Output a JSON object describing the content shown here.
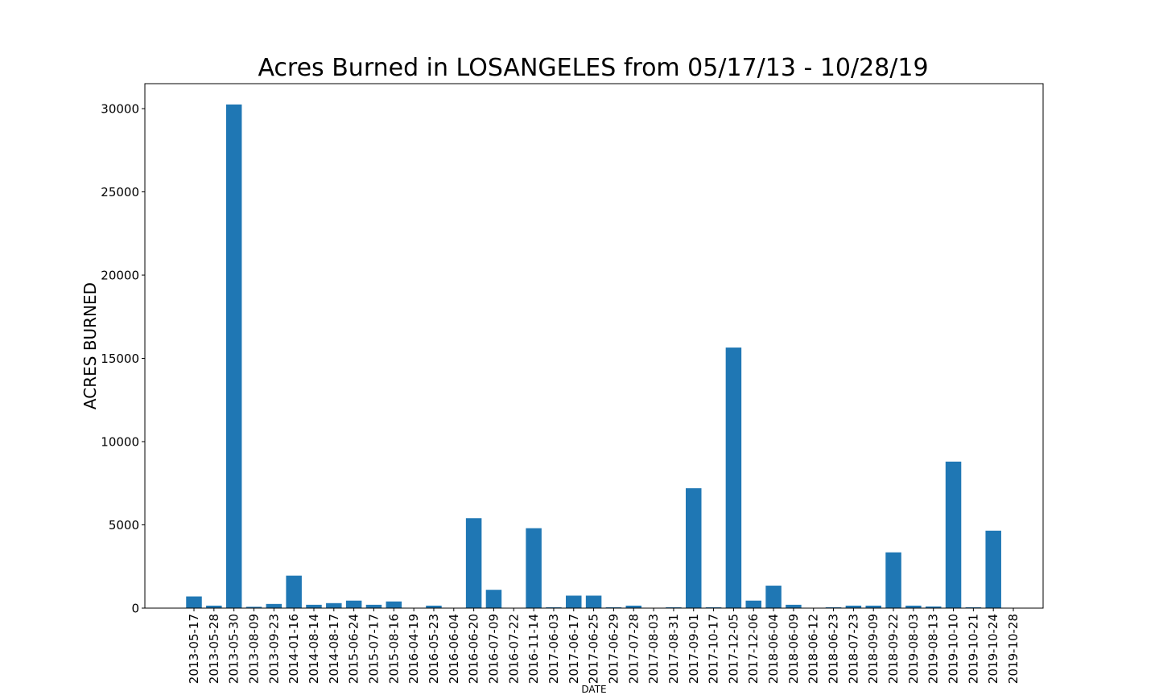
{
  "chart_data": {
    "type": "bar",
    "title": "Acres Burned in LOSANGELES from 05/17/13 - 10/28/19",
    "xlabel": "DATE",
    "ylabel": "ACRES BURNED",
    "ylim": [
      0,
      31500
    ],
    "yticks": [
      0,
      5000,
      10000,
      15000,
      20000,
      25000,
      30000
    ],
    "ytick_labels": [
      "0",
      "5000",
      "10000",
      "15000",
      "20000",
      "25000",
      "30000"
    ],
    "grid": false,
    "bar_color": "#1f77b4",
    "categories": [
      "2013-05-17",
      "2013-05-28",
      "2013-05-30",
      "2013-08-09",
      "2013-09-23",
      "2014-01-16",
      "2014-08-14",
      "2014-08-17",
      "2015-06-24",
      "2015-07-17",
      "2015-08-16",
      "2016-04-19",
      "2016-05-23",
      "2016-06-04",
      "2016-06-20",
      "2016-07-09",
      "2016-07-22",
      "2016-11-14",
      "2017-06-03",
      "2017-06-17",
      "2017-06-25",
      "2017-06-29",
      "2017-07-28",
      "2017-08-03",
      "2017-08-31",
      "2017-09-01",
      "2017-10-17",
      "2017-12-05",
      "2017-12-06",
      "2018-06-04",
      "2018-06-09",
      "2018-06-12",
      "2018-06-23",
      "2018-07-23",
      "2018-09-09",
      "2018-09-22",
      "2019-08-03",
      "2019-08-13",
      "2019-10-10",
      "2019-10-21",
      "2019-10-24",
      "2019-10-28"
    ],
    "values": [
      700,
      150,
      30250,
      80,
      250,
      1950,
      200,
      300,
      450,
      200,
      400,
      0,
      150,
      0,
      5400,
      1100,
      0,
      4800,
      50,
      750,
      750,
      50,
      150,
      0,
      50,
      7200,
      50,
      15650,
      450,
      1350,
      200,
      0,
      50,
      150,
      150,
      3350,
      150,
      100,
      8800,
      50,
      4650,
      0
    ]
  }
}
